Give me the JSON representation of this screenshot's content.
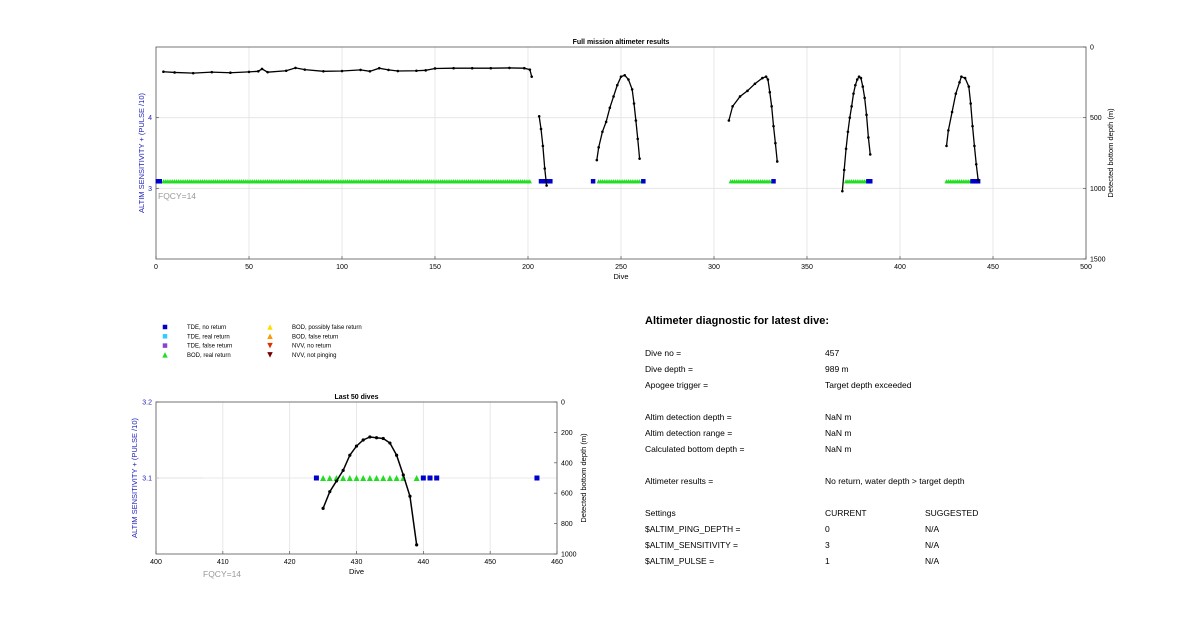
{
  "chart_data": [
    {
      "type": "scatter",
      "title": "Full mission altimeter results",
      "xlabel": "Dive",
      "ylabel": "ALTIM SENSITIVITY + (PULSE /10)",
      "y2label": "Detected bottom depth (m)",
      "xlim": [
        0,
        500
      ],
      "ylim": [
        2,
        5
      ],
      "y2lim": [
        0,
        1500
      ],
      "y2_reversed": true,
      "xticks": [
        "0",
        "50",
        "100",
        "150",
        "200",
        "250",
        "300",
        "350",
        "400",
        "450",
        "500"
      ],
      "yticks": [
        "3",
        "4"
      ],
      "y2ticks": [
        "0",
        "500",
        "1000",
        "1500"
      ],
      "annotation": "FQCY=14",
      "grid": true,
      "bottom_depth_segments": [
        {
          "points": [
            [
              4,
              175
            ],
            [
              10,
              180
            ],
            [
              20,
              185
            ],
            [
              30,
              178
            ],
            [
              40,
              182
            ],
            [
              50,
              176
            ],
            [
              55,
              172
            ],
            [
              57,
              155
            ],
            [
              60,
              178
            ],
            [
              70,
              168
            ],
            [
              75,
              148
            ],
            [
              80,
              160
            ],
            [
              90,
              172
            ],
            [
              100,
              170
            ],
            [
              110,
              162
            ],
            [
              115,
              172
            ],
            [
              120,
              150
            ],
            [
              125,
              162
            ],
            [
              130,
              170
            ],
            [
              140,
              168
            ],
            [
              145,
              165
            ],
            [
              150,
              152
            ],
            [
              160,
              150
            ],
            [
              170,
              150
            ],
            [
              180,
              150
            ],
            [
              190,
              148
            ],
            [
              198,
              150
            ],
            [
              201,
              160
            ],
            [
              202,
              210
            ]
          ]
        },
        {
          "points": [
            [
              206,
              490
            ],
            [
              207,
              580
            ],
            [
              208,
              700
            ],
            [
              209,
              860
            ],
            [
              210,
              980
            ]
          ]
        },
        {
          "points": [
            [
              237,
              800
            ],
            [
              238,
              710
            ],
            [
              240,
              600
            ],
            [
              242,
              530
            ],
            [
              244,
              430
            ],
            [
              246,
              350
            ],
            [
              248,
              270
            ],
            [
              250,
              210
            ],
            [
              252,
              200
            ],
            [
              254,
              230
            ],
            [
              256,
              300
            ],
            [
              257,
              400
            ],
            [
              258,
              520
            ],
            [
              259,
              650
            ],
            [
              260,
              790
            ]
          ]
        },
        {
          "points": [
            [
              308,
              520
            ],
            [
              310,
              420
            ],
            [
              314,
              350
            ],
            [
              318,
              310
            ],
            [
              322,
              260
            ],
            [
              326,
              220
            ],
            [
              328,
              210
            ],
            [
              329,
              230
            ],
            [
              330,
              320
            ],
            [
              331,
              420
            ],
            [
              332,
              560
            ],
            [
              333,
              680
            ],
            [
              334,
              810
            ]
          ]
        },
        {
          "points": [
            [
              369,
              1020
            ],
            [
              370,
              870
            ],
            [
              371,
              720
            ],
            [
              372,
              600
            ],
            [
              373,
              500
            ],
            [
              374,
              420
            ],
            [
              375,
              330
            ],
            [
              376,
              270
            ],
            [
              377,
              230
            ],
            [
              378,
              210
            ],
            [
              379,
              220
            ],
            [
              380,
              280
            ],
            [
              381,
              360
            ],
            [
              382,
              480
            ],
            [
              383,
              640
            ],
            [
              384,
              760
            ]
          ]
        },
        {
          "points": [
            [
              425,
              700
            ],
            [
              426,
              590
            ],
            [
              428,
              460
            ],
            [
              430,
              330
            ],
            [
              432,
              250
            ],
            [
              433,
              210
            ],
            [
              435,
              220
            ],
            [
              437,
              280
            ],
            [
              438,
              400
            ],
            [
              439,
              560
            ],
            [
              440,
              700
            ],
            [
              441,
              830
            ],
            [
              442,
              940
            ]
          ]
        }
      ],
      "tde_no_return": [
        [
          1,
          2
        ],
        [
          2,
          2
        ],
        [
          203,
          202
        ],
        [
          207,
          212
        ],
        [
          235,
          235
        ],
        [
          262,
          262
        ],
        [
          332,
          332
        ],
        [
          383,
          384
        ],
        [
          439,
          442
        ]
      ],
      "bod_real_return": [
        [
          4,
          201
        ],
        [
          238,
          260
        ],
        [
          309,
          330
        ],
        [
          371,
          382
        ],
        [
          425,
          438
        ]
      ]
    },
    {
      "type": "scatter",
      "title": "Last 50 dives",
      "xlabel": "Dive",
      "ylabel": "ALTIM SENSITIVITY + (PULSE /10)",
      "y2label": "Detected bottom depth (m)",
      "xlim": [
        400,
        460
      ],
      "ylim": [
        3,
        3.2
      ],
      "y2lim": [
        0,
        1000
      ],
      "y2_reversed": true,
      "xticks": [
        "400",
        "410",
        "420",
        "430",
        "440",
        "450",
        "460"
      ],
      "yticks": [
        "3.1",
        "3.2"
      ],
      "y2ticks": [
        "0",
        "200",
        "400",
        "600",
        "800",
        "1000"
      ],
      "annotation": "FQCY=14",
      "grid": true,
      "bottom_depth": [
        [
          425,
          700
        ],
        [
          426,
          590
        ],
        [
          427,
          520
        ],
        [
          428,
          450
        ],
        [
          429,
          350
        ],
        [
          430,
          290
        ],
        [
          431,
          250
        ],
        [
          432,
          230
        ],
        [
          433,
          235
        ],
        [
          434,
          240
        ],
        [
          435,
          270
        ],
        [
          436,
          350
        ],
        [
          437,
          480
        ],
        [
          438,
          620
        ],
        [
          439,
          940
        ]
      ],
      "tde_no_return": [
        [
          424,
          3.1
        ],
        [
          440,
          3.1
        ],
        [
          441,
          3.1
        ],
        [
          442,
          3.1
        ],
        [
          457,
          3.1
        ]
      ],
      "bod_real_return": [
        [
          425,
          3.1
        ],
        [
          426,
          3.1
        ],
        [
          427,
          3.1
        ],
        [
          428,
          3.1
        ],
        [
          429,
          3.1
        ],
        [
          430,
          3.1
        ],
        [
          431,
          3.1
        ],
        [
          432,
          3.1
        ],
        [
          433,
          3.1
        ],
        [
          434,
          3.1
        ],
        [
          435,
          3.1
        ],
        [
          436,
          3.1
        ],
        [
          437,
          3.1
        ],
        [
          439,
          3.1
        ]
      ]
    }
  ],
  "legend": {
    "col1": [
      {
        "label": "TDE, no return",
        "color": "#0000cc",
        "shape": "square"
      },
      {
        "label": "TDE, real return",
        "color": "#33ccff",
        "shape": "square"
      },
      {
        "label": "TDE, false return",
        "color": "#8844cc",
        "shape": "square"
      },
      {
        "label": "BOD, real return",
        "color": "#22dd22",
        "shape": "triangle-up"
      }
    ],
    "col2": [
      {
        "label": "BOD, possibly false return",
        "color": "#ffdd00",
        "shape": "triangle-up"
      },
      {
        "label": "BOD, false return",
        "color": "#ff9900",
        "shape": "triangle-up"
      },
      {
        "label": "NVV, no return",
        "color": "#dd3300",
        "shape": "triangle-down"
      },
      {
        "label": "NVV, not pinging",
        "color": "#770000",
        "shape": "triangle-down"
      }
    ]
  },
  "diagnostic": {
    "title": "Altimeter diagnostic for latest dive:",
    "rows": [
      {
        "label": "Dive no =",
        "value": "457"
      },
      {
        "label": "Dive depth =",
        "value": "989 m"
      },
      {
        "label": "Apogee trigger =",
        "value": "Target depth exceeded"
      },
      {
        "label": "Altim detection depth =",
        "value": "NaN m"
      },
      {
        "label": "Altim detection range =",
        "value": "NaN m"
      },
      {
        "label": "Calculated bottom depth =",
        "value": "NaN m"
      },
      {
        "label": "Altimeter results =",
        "value": "No return, water depth > target depth"
      }
    ],
    "settings_header": {
      "label": "Settings",
      "current": "CURRENT",
      "suggested": "SUGGESTED"
    },
    "settings": [
      {
        "label": "$ALTIM_PING_DEPTH =",
        "current": "0",
        "suggested": "N/A"
      },
      {
        "label": "$ALTIM_SENSITIVITY =",
        "current": "3",
        "suggested": "N/A"
      },
      {
        "label": "$ALTIM_PULSE =",
        "current": "1",
        "suggested": "N/A"
      }
    ]
  }
}
